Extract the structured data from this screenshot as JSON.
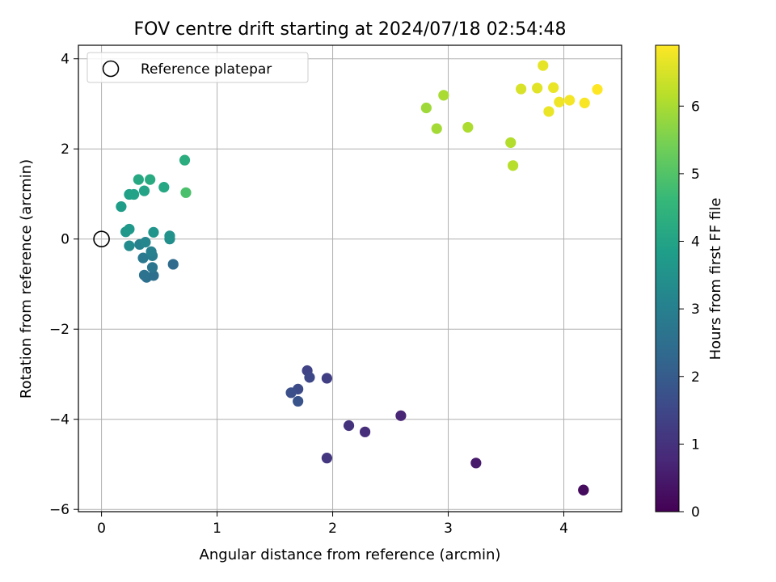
{
  "chart_data": {
    "type": "scatter",
    "title": "FOV centre drift starting at 2024/07/18 02:54:48",
    "xlabel": "Angular distance from reference (arcmin)",
    "ylabel": "Rotation from reference (arcmin)",
    "xlim": [
      -0.2,
      4.5
    ],
    "ylim": [
      -6.05,
      4.3
    ],
    "xticks": [
      0,
      1,
      2,
      3,
      4
    ],
    "yticks": [
      -6,
      -4,
      -2,
      0,
      2,
      4
    ],
    "xtick_labels": [
      "0",
      "1",
      "2",
      "3",
      "4"
    ],
    "ytick_labels": [
      "−6",
      "−4",
      "−2",
      "0",
      "2",
      "4"
    ],
    "grid": true,
    "legend": {
      "placement": "top-left",
      "entries": [
        {
          "label": "Reference platepar",
          "marker": "open-circle",
          "color": "#000000"
        }
      ]
    },
    "reference_point": {
      "x": 0,
      "y": 0
    },
    "colorbar": {
      "label": "Hours from first FF file",
      "colormap": "viridis",
      "range": [
        0,
        6.9
      ],
      "ticks": [
        0,
        1,
        2,
        3,
        4,
        5,
        6
      ],
      "tick_labels": [
        "0",
        "1",
        "2",
        "3",
        "4",
        "5",
        "6"
      ],
      "colors": [
        "#440154",
        "#482878",
        "#3e4989",
        "#31688e",
        "#26828e",
        "#1f9e89",
        "#35b779",
        "#6ece58",
        "#b5de2b",
        "#fde725"
      ]
    },
    "points": [
      {
        "x": 4.17,
        "y": -5.57,
        "h": 0.1
      },
      {
        "x": 4.17,
        "y": -5.57,
        "h": 0.2
      },
      {
        "x": 3.24,
        "y": -4.97,
        "h": 0.5
      },
      {
        "x": 2.59,
        "y": -3.92,
        "h": 0.7
      },
      {
        "x": 2.28,
        "y": -4.28,
        "h": 0.9
      },
      {
        "x": 2.14,
        "y": -4.14,
        "h": 1.0
      },
      {
        "x": 1.95,
        "y": -4.86,
        "h": 1.1
      },
      {
        "x": 1.95,
        "y": -3.09,
        "h": 1.3
      },
      {
        "x": 1.78,
        "y": -2.92,
        "h": 1.4
      },
      {
        "x": 1.8,
        "y": -3.07,
        "h": 1.5
      },
      {
        "x": 1.7,
        "y": -3.33,
        "h": 1.6
      },
      {
        "x": 1.64,
        "y": -3.41,
        "h": 1.7
      },
      {
        "x": 1.7,
        "y": -3.6,
        "h": 1.8
      },
      {
        "x": 0.62,
        "y": -0.56,
        "h": 2.4
      },
      {
        "x": 0.45,
        "y": -0.81,
        "h": 2.5
      },
      {
        "x": 0.39,
        "y": -0.85,
        "h": 2.55
      },
      {
        "x": 0.37,
        "y": -0.8,
        "h": 2.6
      },
      {
        "x": 0.44,
        "y": -0.63,
        "h": 2.7
      },
      {
        "x": 0.36,
        "y": -0.42,
        "h": 2.8
      },
      {
        "x": 0.44,
        "y": -0.37,
        "h": 2.9
      },
      {
        "x": 0.43,
        "y": -0.28,
        "h": 3.0
      },
      {
        "x": 0.33,
        "y": -0.12,
        "h": 3.1
      },
      {
        "x": 0.38,
        "y": -0.07,
        "h": 3.2
      },
      {
        "x": 0.24,
        "y": -0.15,
        "h": 3.3
      },
      {
        "x": 0.59,
        "y": 0.0,
        "h": 3.4
      },
      {
        "x": 0.59,
        "y": 0.07,
        "h": 3.5
      },
      {
        "x": 0.45,
        "y": 0.15,
        "h": 3.6
      },
      {
        "x": 0.21,
        "y": 0.16,
        "h": 3.65
      },
      {
        "x": 0.24,
        "y": 0.22,
        "h": 3.7
      },
      {
        "x": 0.17,
        "y": 0.72,
        "h": 3.8
      },
      {
        "x": 0.24,
        "y": 0.99,
        "h": 3.9
      },
      {
        "x": 0.28,
        "y": 0.99,
        "h": 3.95
      },
      {
        "x": 0.37,
        "y": 1.07,
        "h": 4.0
      },
      {
        "x": 0.54,
        "y": 1.15,
        "h": 4.1
      },
      {
        "x": 0.32,
        "y": 1.32,
        "h": 4.15
      },
      {
        "x": 0.42,
        "y": 1.32,
        "h": 4.2
      },
      {
        "x": 0.72,
        "y": 1.75,
        "h": 4.3
      },
      {
        "x": 0.73,
        "y": 1.03,
        "h": 4.9
      },
      {
        "x": 2.81,
        "y": 2.91,
        "h": 5.9
      },
      {
        "x": 2.9,
        "y": 2.45,
        "h": 5.95
      },
      {
        "x": 2.96,
        "y": 3.19,
        "h": 6.0
      },
      {
        "x": 3.17,
        "y": 2.48,
        "h": 6.05
      },
      {
        "x": 3.54,
        "y": 2.14,
        "h": 6.1
      },
      {
        "x": 3.56,
        "y": 1.63,
        "h": 6.15
      },
      {
        "x": 3.63,
        "y": 3.33,
        "h": 6.5
      },
      {
        "x": 3.77,
        "y": 3.35,
        "h": 6.6
      },
      {
        "x": 3.82,
        "y": 3.85,
        "h": 6.65
      },
      {
        "x": 3.87,
        "y": 2.83,
        "h": 6.7
      },
      {
        "x": 3.91,
        "y": 3.36,
        "h": 6.7
      },
      {
        "x": 3.96,
        "y": 3.04,
        "h": 6.75
      },
      {
        "x": 4.05,
        "y": 3.08,
        "h": 6.8
      },
      {
        "x": 4.18,
        "y": 3.02,
        "h": 6.85
      },
      {
        "x": 4.29,
        "y": 3.32,
        "h": 6.9
      }
    ]
  }
}
